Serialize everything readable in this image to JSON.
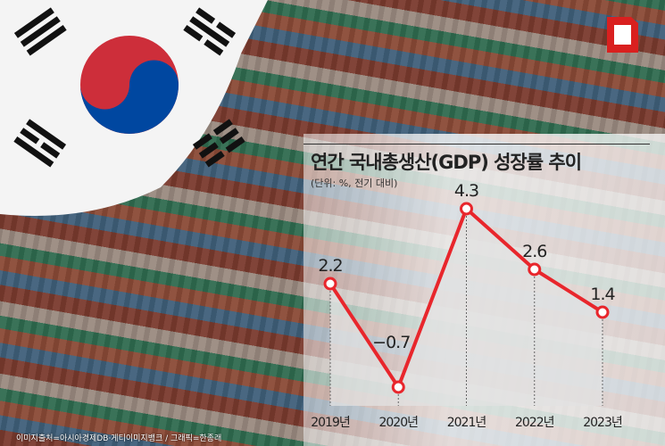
{
  "chart_data": {
    "type": "line",
    "title": "연간 국내총생산(GDP) 성장률 추이",
    "subtitle": "(단위: %, 전기 대비)",
    "categories": [
      "2019년",
      "2020년",
      "2021년",
      "2022년",
      "2023년"
    ],
    "values": [
      2.2,
      -0.7,
      4.3,
      2.6,
      1.4
    ],
    "data_labels": [
      "2.2",
      "−0.7",
      "4.3",
      "2.6",
      "1.4"
    ],
    "grid": false,
    "area_fill": true,
    "line_color": "#e8262c"
  },
  "credit": "이미지출처=아시아경제DB·게티이미지뱅크 / 그래픽=한종래",
  "colors": {
    "logo": "#d9201f"
  }
}
